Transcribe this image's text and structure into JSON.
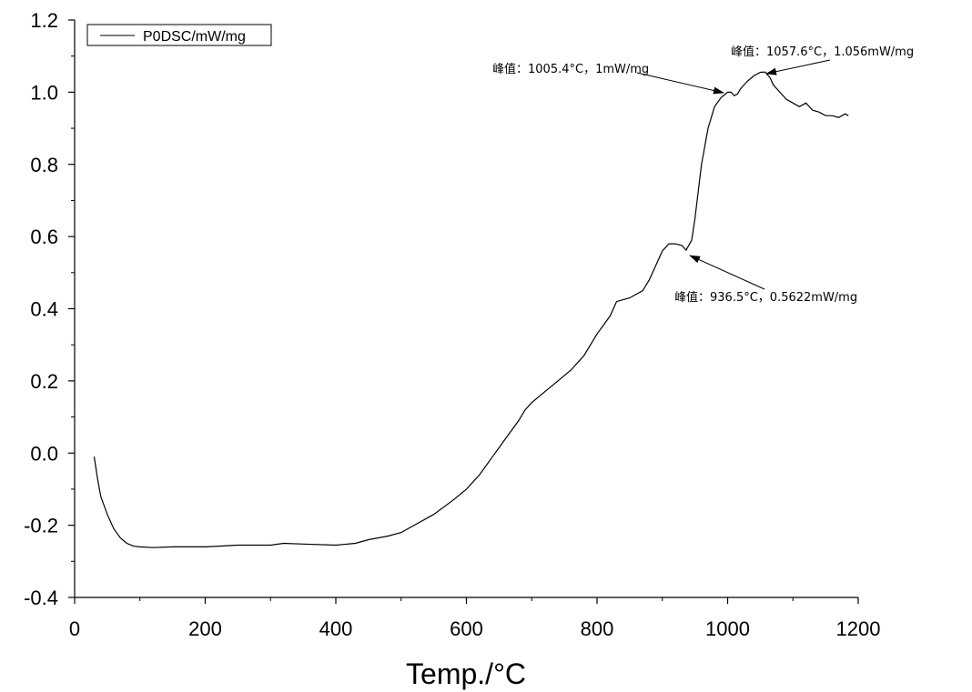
{
  "chart_data": {
    "type": "line",
    "xlabel": "Temp./°C",
    "ylabel": "",
    "xlim": [
      0,
      1200
    ],
    "ylim": [
      -0.4,
      1.2
    ],
    "xticks": [
      "0",
      "200",
      "400",
      "600",
      "800",
      "1000",
      "1200"
    ],
    "yticks": [
      "-0.4",
      "-0.2",
      "0.0",
      "0.2",
      "0.4",
      "0.6",
      "0.8",
      "1.0",
      "1.2"
    ],
    "legend": {
      "position": "top-left",
      "entries": [
        "P0DSC/mW/mg"
      ]
    },
    "grid": false,
    "series": [
      {
        "name": "P0DSC/mW/mg",
        "color": "#000000",
        "x": [
          30,
          35,
          40,
          50,
          60,
          70,
          80,
          90,
          100,
          120,
          150,
          200,
          250,
          300,
          320,
          350,
          400,
          430,
          450,
          480,
          500,
          520,
          550,
          580,
          600,
          620,
          640,
          660,
          680,
          690,
          700,
          720,
          740,
          760,
          780,
          800,
          820,
          830,
          850,
          860,
          870,
          880,
          890,
          900,
          910,
          920,
          930,
          936.5,
          945,
          950,
          960,
          970,
          980,
          990,
          1000,
          1005.4,
          1010,
          1015,
          1020,
          1030,
          1040,
          1050,
          1057.6,
          1065,
          1070,
          1080,
          1090,
          1100,
          1110,
          1120,
          1130,
          1140,
          1150,
          1160,
          1170,
          1180,
          1185
        ],
        "y": [
          -0.01,
          -0.07,
          -0.12,
          -0.17,
          -0.21,
          -0.235,
          -0.25,
          -0.258,
          -0.26,
          -0.262,
          -0.26,
          -0.26,
          -0.255,
          -0.255,
          -0.25,
          -0.252,
          -0.255,
          -0.25,
          -0.24,
          -0.23,
          -0.22,
          -0.2,
          -0.17,
          -0.13,
          -0.1,
          -0.06,
          -0.01,
          0.04,
          0.09,
          0.12,
          0.14,
          0.17,
          0.2,
          0.23,
          0.27,
          0.33,
          0.38,
          0.42,
          0.43,
          0.44,
          0.45,
          0.48,
          0.52,
          0.56,
          0.58,
          0.58,
          0.575,
          0.5622,
          0.59,
          0.65,
          0.8,
          0.9,
          0.96,
          0.985,
          1.0,
          1.0,
          0.99,
          0.995,
          1.01,
          1.03,
          1.045,
          1.055,
          1.056,
          1.04,
          1.02,
          1.0,
          0.98,
          0.97,
          0.96,
          0.97,
          0.95,
          0.945,
          0.935,
          0.935,
          0.93,
          0.94,
          0.935
        ]
      }
    ],
    "annotations": [
      {
        "text": "峰值：1005.4°C，1mW/mg",
        "x": 1005.4,
        "y": 1.0
      },
      {
        "text": "峰值：1057.6°C，1.056mW/mg",
        "x": 1057.6,
        "y": 1.056
      },
      {
        "text": "峰值：936.5°C，0.5622mW/mg",
        "x": 936.5,
        "y": 0.5622
      }
    ]
  }
}
